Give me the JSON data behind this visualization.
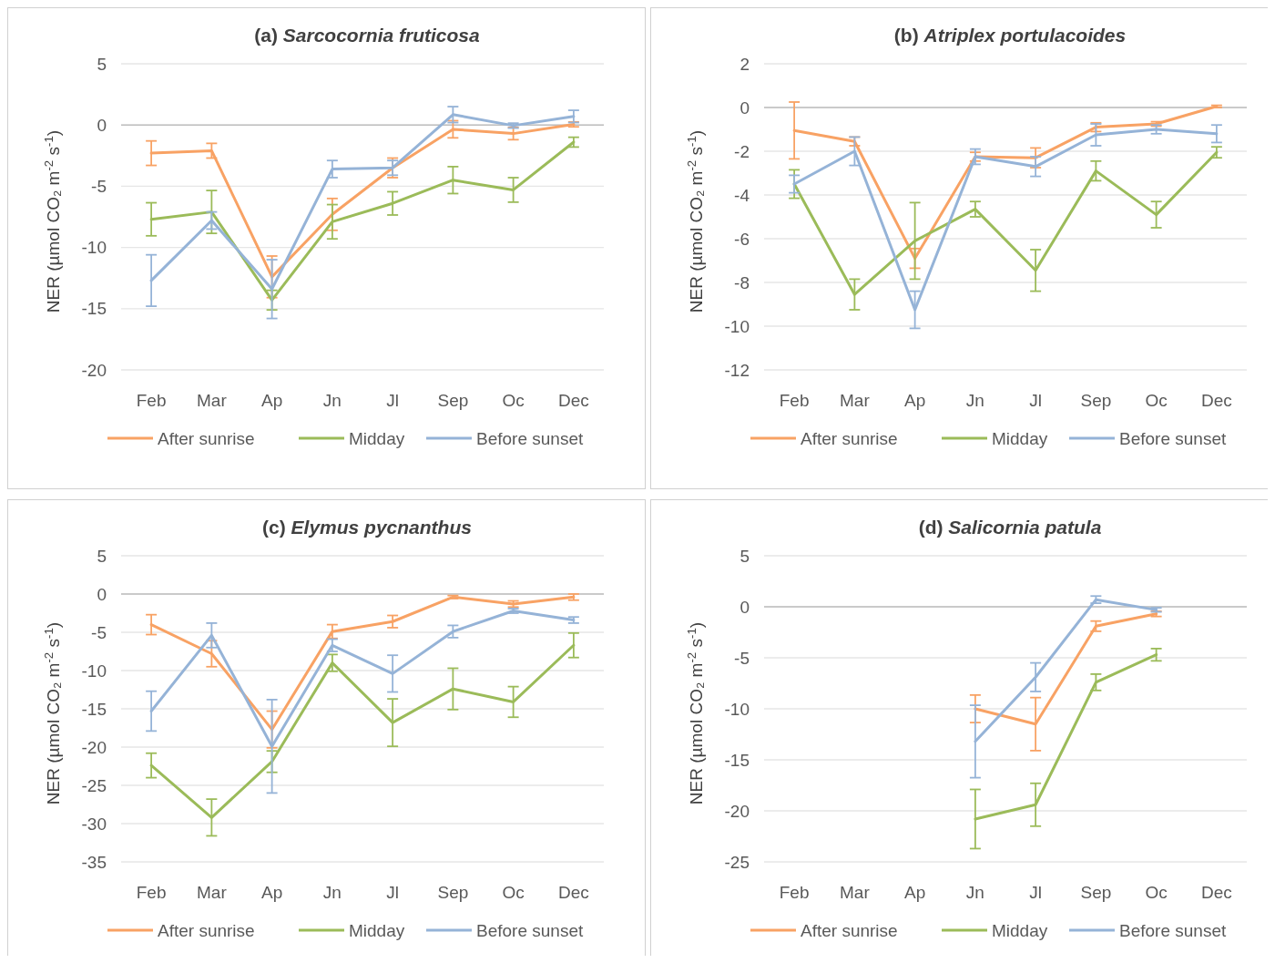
{
  "chart_data": [
    {
      "type": "line",
      "title": "(a) Sarcocornia fruticosa",
      "ylabel": "NER (µmol CO₂ m$^{-2}$ s$^{-1}$)",
      "categories": [
        "Feb",
        "Mar",
        "Ap",
        "Jn",
        "Jl",
        "Sep",
        "Oc",
        "Dec"
      ],
      "ylim": [
        -20,
        5
      ],
      "yticks": [
        -20,
        -15,
        -10,
        -5,
        0,
        5
      ],
      "grid": "y",
      "legend": "bottom",
      "marker": "none",
      "series": [
        {
          "name": "After sunrise",
          "color": "#f8a264",
          "values": [
            -2.3,
            -2.1,
            -12.4,
            -7.3,
            -3.5,
            -0.35,
            -0.7,
            0.05
          ],
          "errors": [
            1.0,
            0.6,
            1.7,
            1.3,
            0.8,
            0.7,
            0.5,
            0.2
          ]
        },
        {
          "name": "Midday",
          "color": "#9bbb59",
          "values": [
            -7.7,
            -7.1,
            -14.3,
            -7.9,
            -6.4,
            -4.5,
            -5.3,
            -1.4
          ],
          "errors": [
            1.35,
            1.75,
            0.8,
            1.4,
            0.95,
            1.1,
            1.0,
            0.4
          ]
        },
        {
          "name": "Before sunset",
          "color": "#95b3d7",
          "values": [
            -12.7,
            -7.8,
            -13.4,
            -3.6,
            -3.5,
            0.85,
            -0.05,
            0.7
          ],
          "errors": [
            2.1,
            0.7,
            2.4,
            0.7,
            0.6,
            0.65,
            0.2,
            0.5
          ]
        }
      ]
    },
    {
      "type": "line",
      "title": "(b) Atriplex portulacoides",
      "ylabel": "NER (µmol CO₂ m$^{-2}$ s$^{-1}$)",
      "categories": [
        "Feb",
        "Mar",
        "Ap",
        "Jn",
        "Jl",
        "Sep",
        "Oc",
        "Dec"
      ],
      "ylim": [
        -12,
        2
      ],
      "yticks": [
        -12,
        -10,
        -8,
        -6,
        -4,
        -2,
        0,
        2
      ],
      "grid": "y",
      "legend": "bottom",
      "marker": "none",
      "series": [
        {
          "name": "After sunrise",
          "color": "#f8a264",
          "values": [
            -1.05,
            -1.55,
            -6.9,
            -2.25,
            -2.3,
            -0.9,
            -0.75,
            0.05
          ],
          "errors": [
            1.3,
            0.2,
            0.45,
            0.2,
            0.45,
            0.2,
            0.1,
            0.05
          ]
        },
        {
          "name": "Midday",
          "color": "#9bbb59",
          "values": [
            -3.5,
            -8.55,
            -6.1,
            -4.65,
            -7.45,
            -2.9,
            -4.9,
            -2.05
          ],
          "errors": [
            0.65,
            0.7,
            1.75,
            0.35,
            0.95,
            0.45,
            0.6,
            0.25
          ]
        },
        {
          "name": "Before sunset",
          "color": "#95b3d7",
          "values": [
            -3.5,
            -2.0,
            -9.25,
            -2.25,
            -2.7,
            -1.25,
            -1.0,
            -1.2
          ],
          "errors": [
            0.4,
            0.65,
            0.85,
            0.35,
            0.45,
            0.5,
            0.2,
            0.4
          ]
        }
      ]
    },
    {
      "type": "line",
      "title": "(c) Elymus pycnanthus",
      "ylabel": "NER (µmol CO₂ m$^{-2}$ s$^{-1}$)",
      "categories": [
        "Feb",
        "Mar",
        "Ap",
        "Jn",
        "Jl",
        "Sep",
        "Oc",
        "Dec"
      ],
      "ylim": [
        -35,
        5
      ],
      "yticks": [
        -35,
        -30,
        -25,
        -20,
        -15,
        -10,
        -5,
        0,
        5
      ],
      "grid": "y",
      "legend": "bottom",
      "marker": "none",
      "series": [
        {
          "name": "After sunrise",
          "color": "#f8a264",
          "values": [
            -4.0,
            -7.8,
            -17.7,
            -4.9,
            -3.6,
            -0.4,
            -1.3,
            -0.4
          ],
          "errors": [
            1.3,
            1.7,
            2.4,
            0.9,
            0.8,
            0.2,
            0.4,
            0.4
          ]
        },
        {
          "name": "Midday",
          "color": "#9bbb59",
          "values": [
            -22.4,
            -29.2,
            -21.9,
            -9.0,
            -16.8,
            -12.4,
            -14.1,
            -6.7
          ],
          "errors": [
            1.6,
            2.4,
            1.4,
            1.1,
            3.1,
            2.7,
            2.0,
            1.6
          ]
        },
        {
          "name": "Before sunset",
          "color": "#95b3d7",
          "values": [
            -15.3,
            -5.4,
            -19.9,
            -6.7,
            -10.4,
            -4.9,
            -2.2,
            -3.4
          ],
          "errors": [
            2.6,
            1.6,
            6.1,
            0.8,
            2.4,
            0.8,
            0.3,
            0.4
          ]
        }
      ]
    },
    {
      "type": "line",
      "title": "(d) Salicornia patula",
      "ylabel": "NER (µmol CO₂ m$^{-2}$ s$^{-1}$)",
      "categories": [
        "Feb",
        "Mar",
        "Ap",
        "Jn",
        "Jl",
        "Sep",
        "Oc",
        "Dec"
      ],
      "ylim": [
        -25,
        5
      ],
      "yticks": [
        -25,
        -20,
        -15,
        -10,
        -5,
        0,
        5
      ],
      "grid": "y",
      "legend": "bottom",
      "marker": "none",
      "series": [
        {
          "name": "After sunrise",
          "color": "#f8a264",
          "values": [
            null,
            null,
            null,
            -10.0,
            -11.5,
            -1.9,
            -0.7,
            null
          ],
          "errors": [
            null,
            null,
            null,
            1.35,
            2.6,
            0.5,
            0.25,
            null
          ]
        },
        {
          "name": "Midday",
          "color": "#9bbb59",
          "values": [
            null,
            null,
            null,
            -20.8,
            -19.4,
            -7.4,
            -4.7,
            null
          ],
          "errors": [
            null,
            null,
            null,
            2.9,
            2.1,
            0.8,
            0.6,
            null
          ]
        },
        {
          "name": "Before sunset",
          "color": "#95b3d7",
          "values": [
            null,
            null,
            null,
            -13.2,
            -6.9,
            0.7,
            -0.3,
            null
          ],
          "errors": [
            null,
            null,
            null,
            3.55,
            1.4,
            0.35,
            0.2,
            null
          ]
        }
      ]
    }
  ]
}
